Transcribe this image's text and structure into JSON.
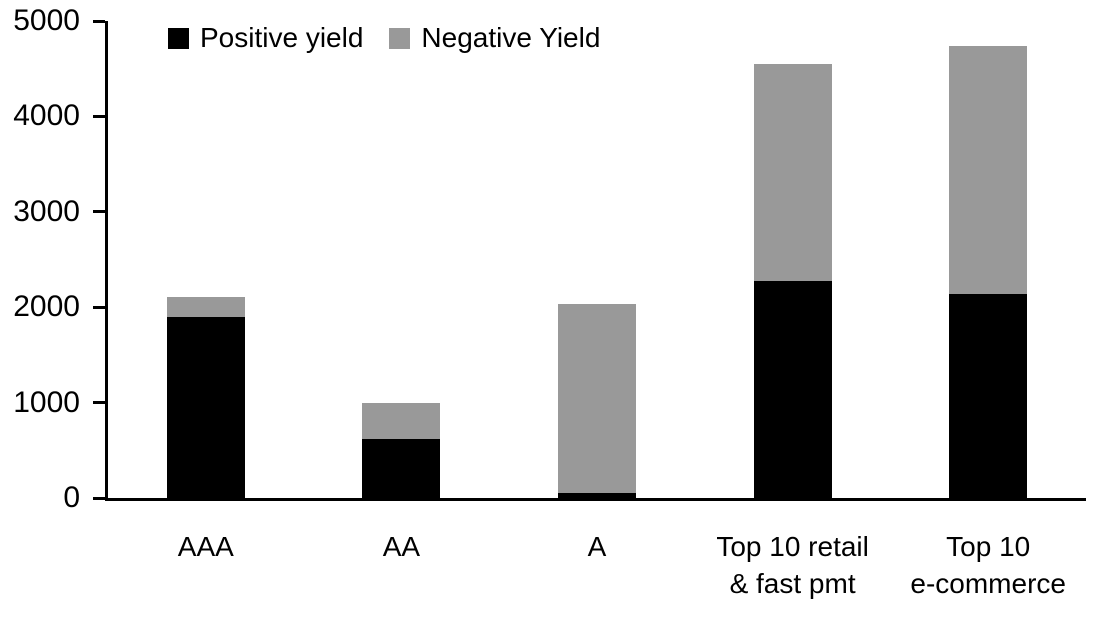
{
  "chart_data": {
    "type": "bar",
    "stacked": true,
    "title": "",
    "xlabel": "",
    "ylabel": "",
    "categories": [
      "AAA",
      "AA",
      "A",
      "Top 10 retail & fast pmt",
      "Top 10 e-commerce"
    ],
    "category_lines": [
      [
        "AAA"
      ],
      [
        "AA"
      ],
      [
        "A"
      ],
      [
        "Top 10 retail",
        "& fast pmt"
      ],
      [
        "Top 10",
        "e-commerce"
      ]
    ],
    "series": [
      {
        "name": "Positive yield",
        "color": "#000000",
        "values": [
          1900,
          620,
          50,
          2280,
          2140
        ]
      },
      {
        "name": "Negative Yield",
        "color": "#999999",
        "values": [
          210,
          380,
          1980,
          2270,
          2600
        ]
      }
    ],
    "ylim": [
      0,
      5000
    ],
    "yticks": [
      0,
      1000,
      2000,
      3000,
      4000,
      5000
    ],
    "grid": false,
    "legend_position": "top-left",
    "axis_color": "#000000",
    "bar_width_ratio": 0.4
  }
}
